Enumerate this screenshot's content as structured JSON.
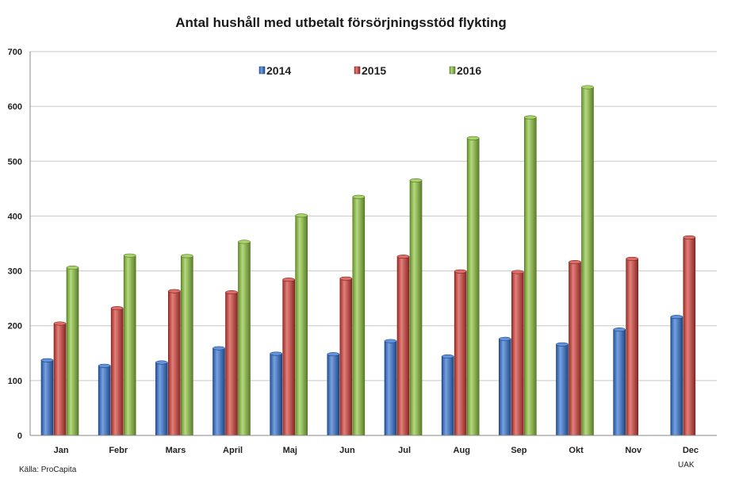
{
  "chart_data": {
    "type": "bar",
    "title": "Antal hushåll med utbetalt försörjningsstöd flykting",
    "xlabel": "",
    "ylabel": "",
    "ylim": [
      0,
      700
    ],
    "yticks": [
      0,
      100,
      200,
      300,
      400,
      500,
      600,
      700
    ],
    "grid": true,
    "legend_position": "top",
    "categories": [
      "Jan",
      "Febr",
      "Mars",
      "April",
      "Maj",
      "Jun",
      "Jul",
      "Aug",
      "Sep",
      "Okt",
      "Nov",
      "Dec"
    ],
    "series": [
      {
        "name": "2014",
        "color": "#2e6fd0",
        "values": [
          137,
          127,
          133,
          159,
          149,
          148,
          172,
          144,
          176,
          166,
          193,
          216
        ]
      },
      {
        "name": "2015",
        "color": "#d43c34",
        "values": [
          204,
          232,
          263,
          261,
          284,
          286,
          326,
          299,
          298,
          316,
          322,
          361
        ]
      },
      {
        "name": "2016",
        "color": "#8cc43a",
        "values": [
          306,
          328,
          327,
          353,
          401,
          435,
          465,
          542,
          580,
          635,
          null,
          null
        ]
      }
    ]
  },
  "notes": {
    "source": "Källa: ProCapita",
    "corner": "UAK"
  }
}
